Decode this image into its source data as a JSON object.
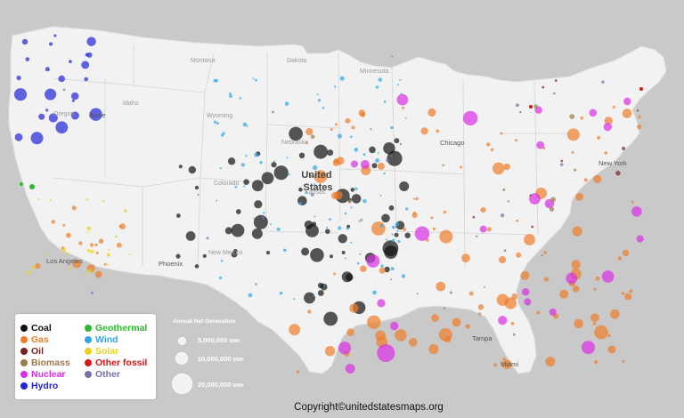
{
  "colors": {
    "background": "#c9c9c9",
    "land": "#f2f2f2",
    "state_border": "#d4d4d4"
  },
  "map_labels": {
    "country": "United States",
    "states": [
      "Montana",
      "Dakota",
      "Wyoming",
      "Nebraska",
      "Minnesota",
      "Idaho",
      "Oregon",
      "Colorado",
      "Kansas",
      "New Mexico"
    ],
    "cities": [
      "Boise",
      "Chicago",
      "New York",
      "Los Angeles",
      "Phoenix",
      "Tampa",
      "Miami"
    ]
  },
  "legend": {
    "items": [
      {
        "label": "Coal",
        "color": "#111111"
      },
      {
        "label": "Gas",
        "color": "#f07c2a"
      },
      {
        "label": "Oil",
        "color": "#7a1f1f"
      },
      {
        "label": "Biomass",
        "color": "#9b7a4c"
      },
      {
        "label": "Nuclear",
        "color": "#d92ee6"
      },
      {
        "label": "Hydro",
        "color": "#1f23d9"
      },
      {
        "label": "Geothermal",
        "color": "#2fb82f"
      },
      {
        "label": "Wind",
        "color": "#31a6e6"
      },
      {
        "label": "Solar",
        "color": "#ecd31a"
      },
      {
        "label": "Other fossil",
        "color": "#d41717"
      },
      {
        "label": "Other",
        "color": "#7a6fa6"
      }
    ]
  },
  "size_legend": {
    "title": "Annual Net Generation",
    "unit": "MWh",
    "entries": [
      "5,000,000",
      "10,000,000",
      "20,000,000"
    ]
  },
  "copyright": "Copyright©unitedstatesmaps.org"
}
